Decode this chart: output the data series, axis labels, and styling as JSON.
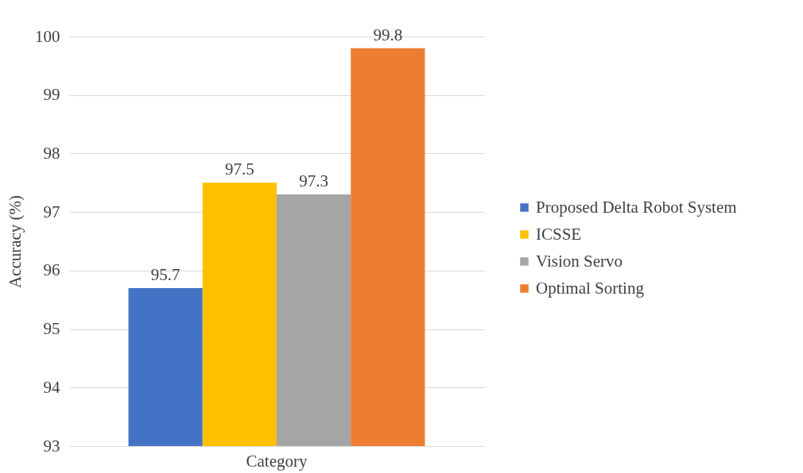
{
  "chart_data": {
    "type": "bar",
    "ylabel": "Accuracy (%)",
    "categories": [
      "Category"
    ],
    "series": [
      {
        "name": "Proposed Delta Robot System",
        "color": "#4472c4",
        "values": [
          95.7
        ]
      },
      {
        "name": "ICSSE",
        "color": "#ffc000",
        "values": [
          97.5
        ]
      },
      {
        "name": "Vision Servo",
        "color": "#a5a5a5",
        "values": [
          97.3
        ]
      },
      {
        "name": "Optimal Sorting",
        "color": "#ed7d31",
        "values": [
          99.8
        ]
      }
    ],
    "ylim": [
      93,
      100
    ],
    "yticks": [
      93,
      94,
      95,
      96,
      97,
      98,
      99,
      100
    ],
    "grid": "y",
    "legend": "right",
    "data_labels": true
  }
}
